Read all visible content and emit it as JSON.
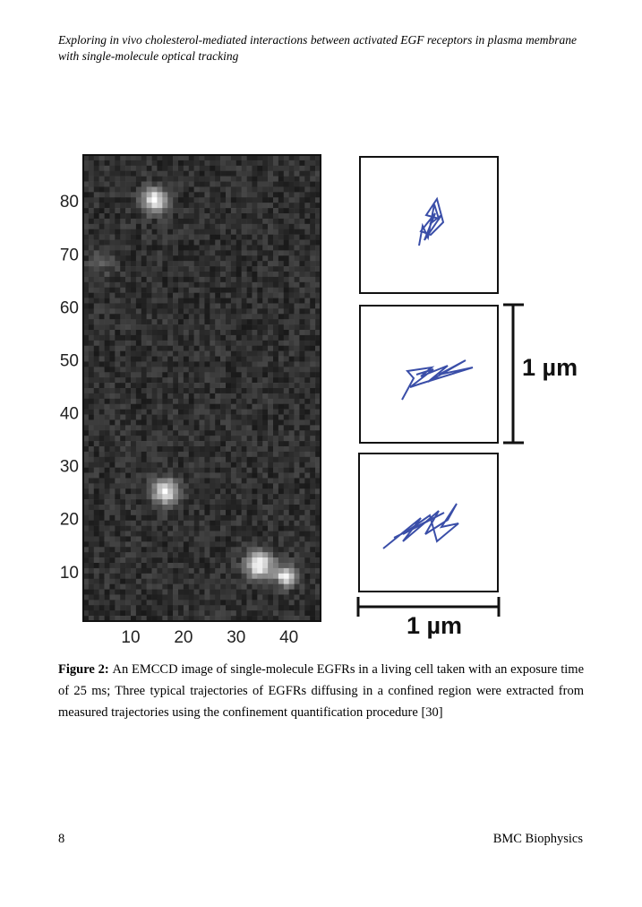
{
  "header": {
    "running_title": "Exploring in vivo cholesterol-mediated interactions between activated EGF receptors in plasma membrane with single-molecule optical tracking"
  },
  "figure": {
    "image_axes": {
      "xlim": [
        1,
        46
      ],
      "ylim": [
        1,
        89
      ],
      "xticks": [
        10,
        20,
        30,
        40
      ],
      "yticks": [
        10,
        20,
        30,
        40,
        50,
        60,
        70,
        80
      ]
    },
    "scale_bar_vertical": "1 µm",
    "scale_bar_horizontal": "1 µm"
  },
  "caption": {
    "label": "Figure 2:",
    "text": "An EMCCD image of single-molecule EGFRs in a living cell taken with an exposure time of 25 ms; Three typical trajectories of EGFRs diffusing in a confined region were extracted from measured trajectories using the confinement quantification procedure [30]"
  },
  "footer": {
    "page_number": "8",
    "journal": "BMC Biophysics"
  }
}
